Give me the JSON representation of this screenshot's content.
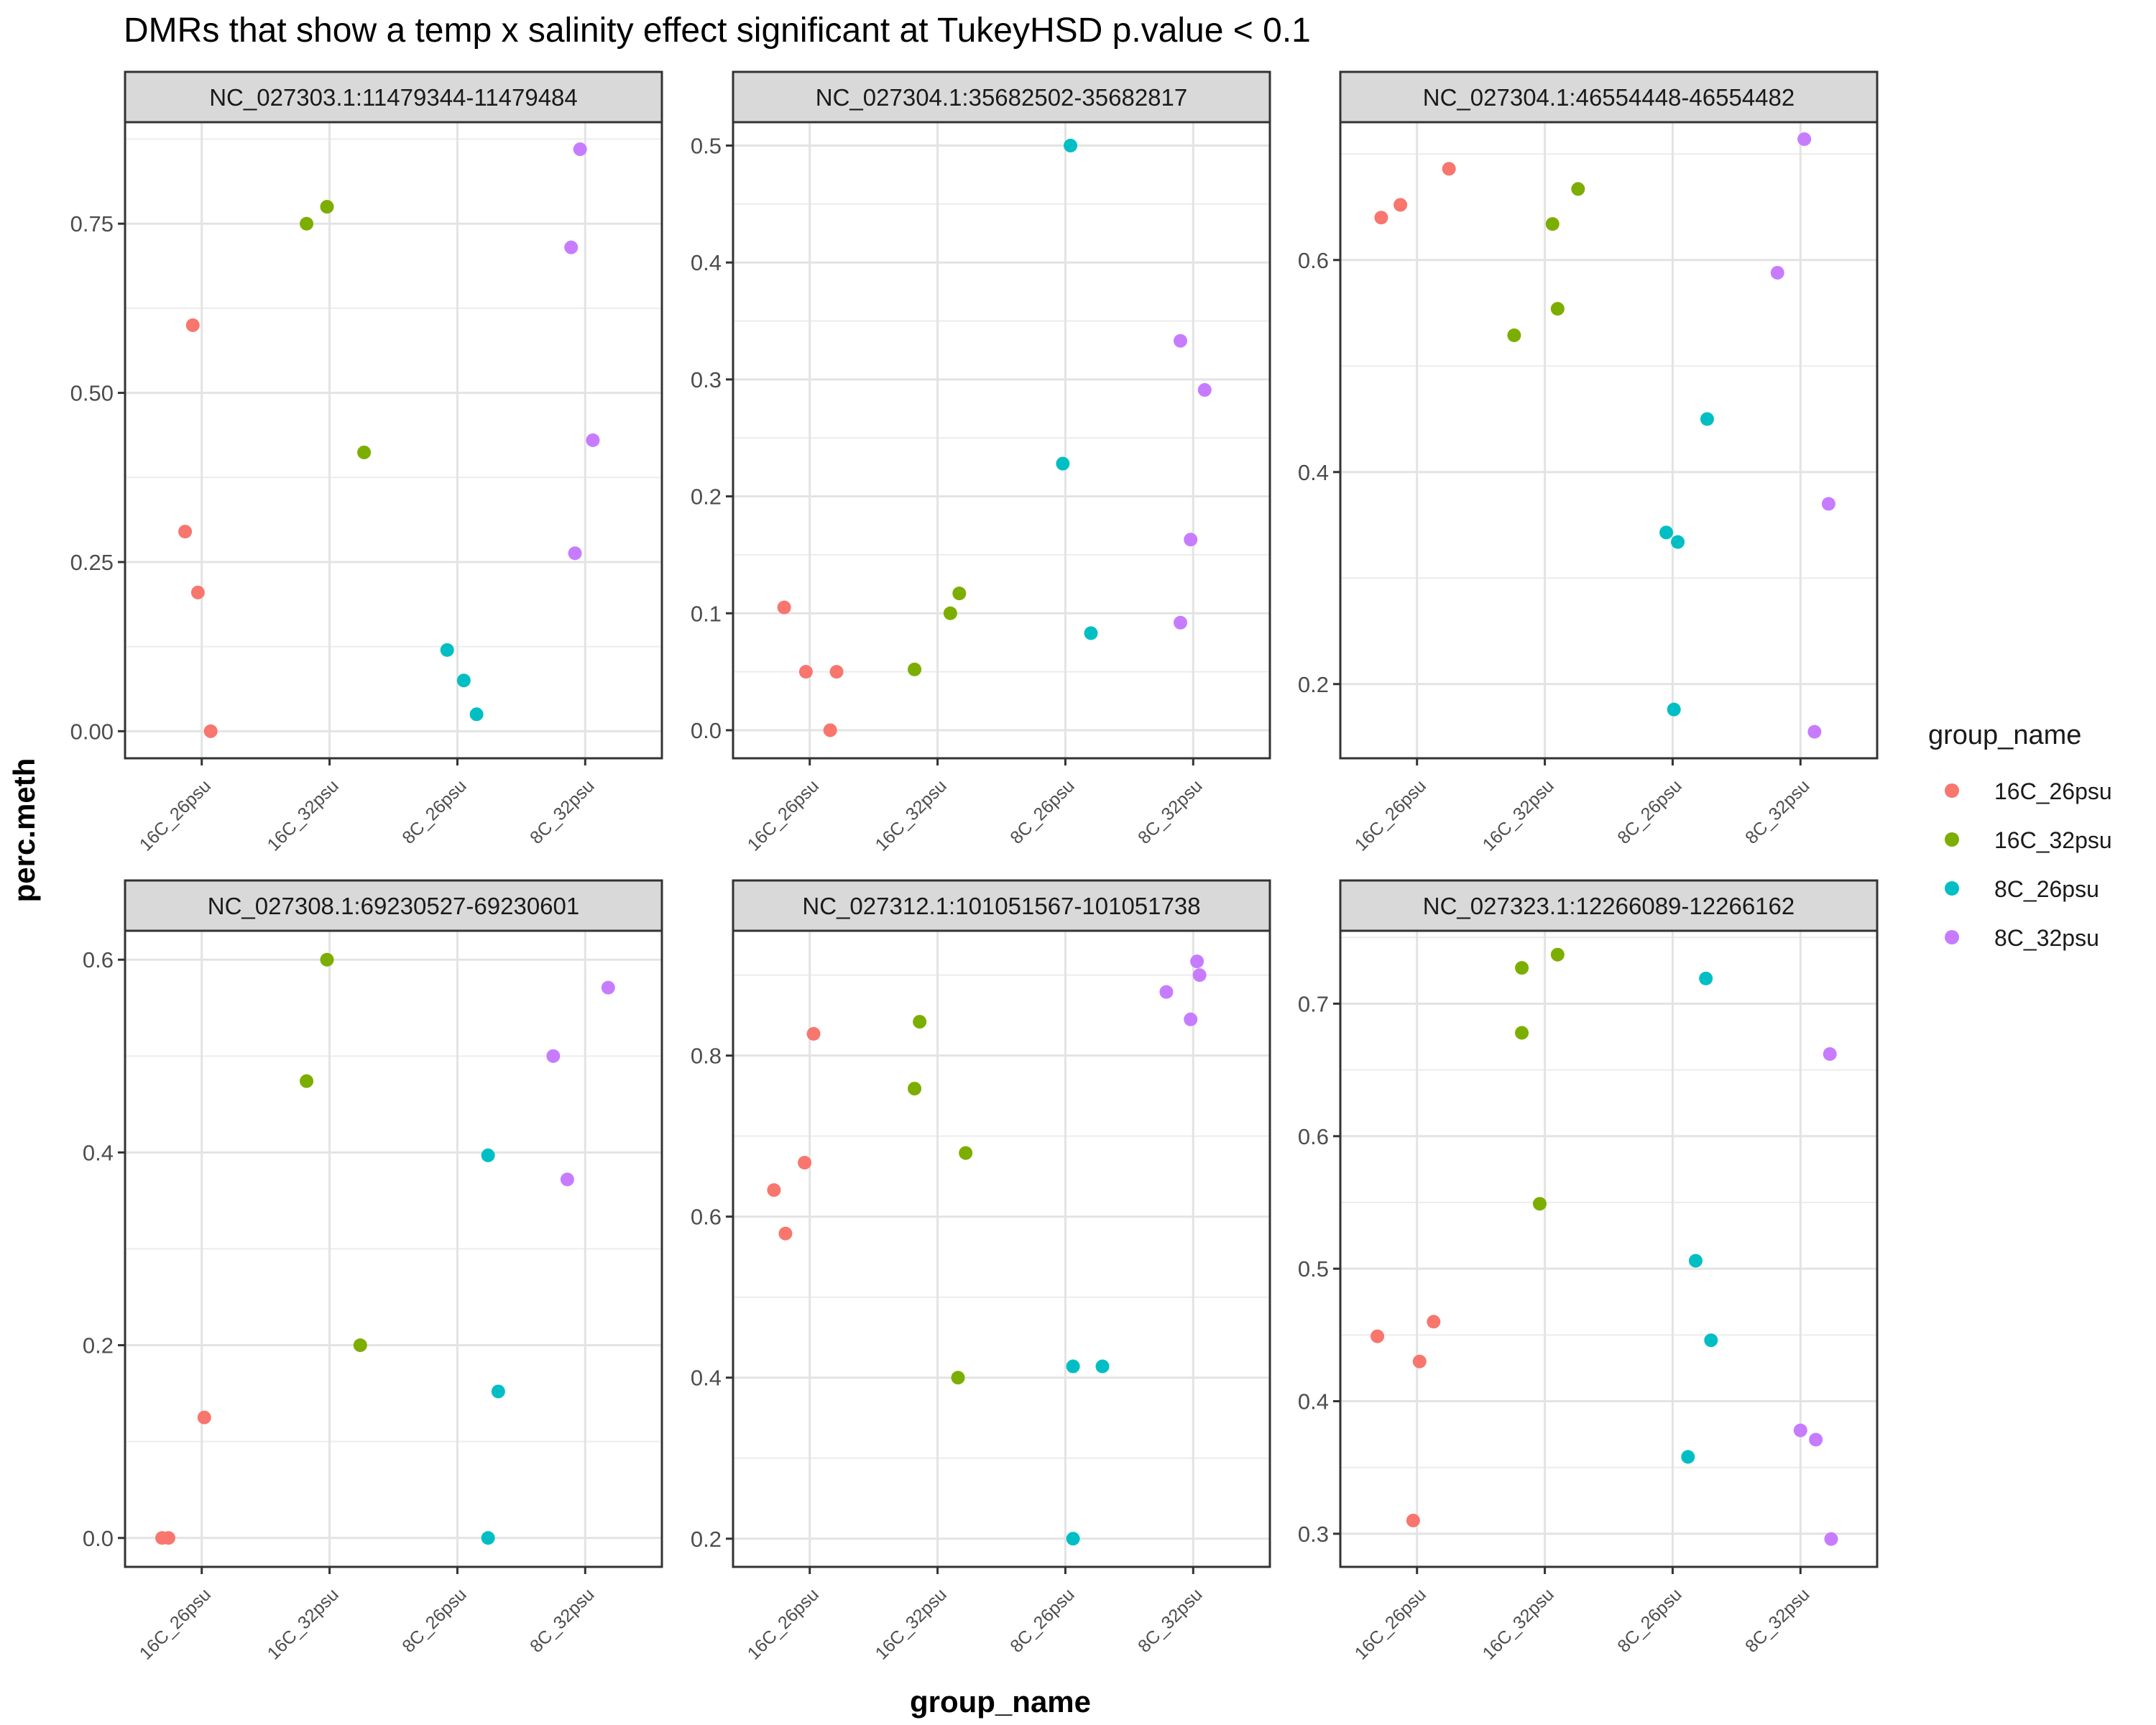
{
  "chart_data": {
    "type": "scatter",
    "title": "DMRs that show a temp x salinity effect significant at TukeyHSD p.value < 0.1",
    "xlabel": "group_name",
    "ylabel": "perc.meth",
    "categories": [
      "16C_26psu",
      "16C_32psu",
      "8C_26psu",
      "8C_32psu"
    ],
    "legend": {
      "title": "group_name",
      "position": "right",
      "items": [
        {
          "label": "16C_26psu",
          "color": "#F8766D"
        },
        {
          "label": "16C_32psu",
          "color": "#7CAE00"
        },
        {
          "label": "8C_26psu",
          "color": "#00BFC4"
        },
        {
          "label": "8C_32psu",
          "color": "#C77CFF"
        }
      ]
    },
    "colors": {
      "16C_26psu": "#F8766D",
      "16C_32psu": "#7CAE00",
      "8C_26psu": "#00BFC4",
      "8C_32psu": "#C77CFF"
    },
    "facets": [
      {
        "strip": "NC_027303.1:11479344-11479484",
        "ylim": [
          -0.04,
          0.9
        ],
        "yticks": [
          0.0,
          0.25,
          0.5,
          0.75
        ],
        "ytick_labels": [
          "0.00",
          "0.25",
          "0.50",
          "0.75"
        ],
        "points": [
          {
            "group": "16C_26psu",
            "x": 0.87,
            "y": 0.295
          },
          {
            "group": "16C_26psu",
            "x": 0.97,
            "y": 0.205
          },
          {
            "group": "16C_26psu",
            "x": 0.93,
            "y": 0.6
          },
          {
            "group": "16C_26psu",
            "x": 1.07,
            "y": 0.0
          },
          {
            "group": "16C_32psu",
            "x": 1.82,
            "y": 0.75
          },
          {
            "group": "16C_32psu",
            "x": 1.98,
            "y": 0.775
          },
          {
            "group": "16C_32psu",
            "x": 2.27,
            "y": 0.412
          },
          {
            "group": "8C_26psu",
            "x": 2.92,
            "y": 0.12
          },
          {
            "group": "8C_26psu",
            "x": 3.05,
            "y": 0.075
          },
          {
            "group": "8C_26psu",
            "x": 3.15,
            "y": 0.025
          },
          {
            "group": "8C_32psu",
            "x": 3.89,
            "y": 0.715
          },
          {
            "group": "8C_32psu",
            "x": 3.96,
            "y": 0.86
          },
          {
            "group": "8C_32psu",
            "x": 3.92,
            "y": 0.263
          },
          {
            "group": "8C_32psu",
            "x": 4.06,
            "y": 0.43
          }
        ]
      },
      {
        "strip": "NC_027304.1:35682502-35682817",
        "ylim": [
          -0.024,
          0.52
        ],
        "yticks": [
          0.0,
          0.1,
          0.2,
          0.3,
          0.4,
          0.5
        ],
        "ytick_labels": [
          "0.0",
          "0.1",
          "0.2",
          "0.3",
          "0.4",
          "0.5"
        ],
        "points": [
          {
            "group": "16C_26psu",
            "x": 0.8,
            "y": 0.105
          },
          {
            "group": "16C_26psu",
            "x": 0.97,
            "y": 0.05
          },
          {
            "group": "16C_26psu",
            "x": 1.21,
            "y": 0.05
          },
          {
            "group": "16C_26psu",
            "x": 1.16,
            "y": 0.0
          },
          {
            "group": "16C_32psu",
            "x": 1.82,
            "y": 0.052
          },
          {
            "group": "16C_32psu",
            "x": 2.1,
            "y": 0.1
          },
          {
            "group": "16C_32psu",
            "x": 2.17,
            "y": 0.117
          },
          {
            "group": "8C_26psu",
            "x": 3.04,
            "y": 0.5
          },
          {
            "group": "8C_26psu",
            "x": 2.98,
            "y": 0.228
          },
          {
            "group": "8C_26psu",
            "x": 3.2,
            "y": 0.083
          },
          {
            "group": "8C_32psu",
            "x": 3.9,
            "y": 0.333
          },
          {
            "group": "8C_32psu",
            "x": 4.09,
            "y": 0.291
          },
          {
            "group": "8C_32psu",
            "x": 3.98,
            "y": 0.163
          },
          {
            "group": "8C_32psu",
            "x": 3.9,
            "y": 0.092
          }
        ]
      },
      {
        "strip": "NC_027304.1:46554448-46554482",
        "ylim": [
          0.13,
          0.73
        ],
        "yticks": [
          0.2,
          0.4,
          0.6
        ],
        "ytick_labels": [
          "0.2",
          "0.4",
          "0.6"
        ],
        "points": [
          {
            "group": "16C_26psu",
            "x": 0.72,
            "y": 0.64
          },
          {
            "group": "16C_26psu",
            "x": 0.87,
            "y": 0.652
          },
          {
            "group": "16C_26psu",
            "x": 1.25,
            "y": 0.686
          },
          {
            "group": "16C_32psu",
            "x": 1.76,
            "y": 0.529
          },
          {
            "group": "16C_32psu",
            "x": 2.06,
            "y": 0.634
          },
          {
            "group": "16C_32psu",
            "x": 2.1,
            "y": 0.554
          },
          {
            "group": "16C_32psu",
            "x": 2.26,
            "y": 0.667
          },
          {
            "group": "8C_26psu",
            "x": 2.95,
            "y": 0.343
          },
          {
            "group": "8C_26psu",
            "x": 3.04,
            "y": 0.334
          },
          {
            "group": "8C_26psu",
            "x": 3.27,
            "y": 0.45
          },
          {
            "group": "8C_26psu",
            "x": 3.01,
            "y": 0.176
          },
          {
            "group": "8C_32psu",
            "x": 3.82,
            "y": 0.588
          },
          {
            "group": "8C_32psu",
            "x": 4.03,
            "y": 0.714
          },
          {
            "group": "8C_32psu",
            "x": 4.22,
            "y": 0.37
          },
          {
            "group": "8C_32psu",
            "x": 4.11,
            "y": 0.155
          }
        ]
      },
      {
        "strip": "NC_027308.1:69230527-69230601",
        "ylim": [
          -0.03,
          0.63
        ],
        "yticks": [
          0.0,
          0.2,
          0.4,
          0.6
        ],
        "ytick_labels": [
          "0.0",
          "0.2",
          "0.4",
          "0.6"
        ],
        "points": [
          {
            "group": "16C_26psu",
            "x": 0.69,
            "y": 0.0
          },
          {
            "group": "16C_26psu",
            "x": 0.74,
            "y": 0.0
          },
          {
            "group": "16C_26psu",
            "x": 1.02,
            "y": 0.125
          },
          {
            "group": "16C_32psu",
            "x": 1.82,
            "y": 0.474
          },
          {
            "group": "16C_32psu",
            "x": 1.98,
            "y": 0.6
          },
          {
            "group": "16C_32psu",
            "x": 2.24,
            "y": 0.2
          },
          {
            "group": "8C_26psu",
            "x": 3.24,
            "y": 0.397
          },
          {
            "group": "8C_26psu",
            "x": 3.32,
            "y": 0.152
          },
          {
            "group": "8C_26psu",
            "x": 3.24,
            "y": 0.0
          },
          {
            "group": "8C_32psu",
            "x": 3.75,
            "y": 0.5
          },
          {
            "group": "8C_32psu",
            "x": 3.86,
            "y": 0.372
          },
          {
            "group": "8C_32psu",
            "x": 4.18,
            "y": 0.571
          }
        ]
      },
      {
        "strip": "NC_027312.1:101051567-101051738",
        "ylim": [
          0.165,
          0.955
        ],
        "yticks": [
          0.2,
          0.4,
          0.6,
          0.8
        ],
        "ytick_labels": [
          "0.2",
          "0.4",
          "0.6",
          "0.8"
        ],
        "points": [
          {
            "group": "16C_26psu",
            "x": 0.72,
            "y": 0.633
          },
          {
            "group": "16C_26psu",
            "x": 0.81,
            "y": 0.579
          },
          {
            "group": "16C_26psu",
            "x": 0.96,
            "y": 0.667
          },
          {
            "group": "16C_26psu",
            "x": 1.03,
            "y": 0.827
          },
          {
            "group": "16C_32psu",
            "x": 1.82,
            "y": 0.759
          },
          {
            "group": "16C_32psu",
            "x": 1.86,
            "y": 0.842
          },
          {
            "group": "16C_32psu",
            "x": 2.16,
            "y": 0.4
          },
          {
            "group": "16C_32psu",
            "x": 2.22,
            "y": 0.679
          },
          {
            "group": "8C_26psu",
            "x": 3.06,
            "y": 0.414
          },
          {
            "group": "8C_26psu",
            "x": 3.29,
            "y": 0.414
          },
          {
            "group": "8C_26psu",
            "x": 3.06,
            "y": 0.2
          },
          {
            "group": "8C_32psu",
            "x": 3.79,
            "y": 0.879
          },
          {
            "group": "8C_32psu",
            "x": 3.98,
            "y": 0.845
          },
          {
            "group": "8C_32psu",
            "x": 4.03,
            "y": 0.917
          },
          {
            "group": "8C_32psu",
            "x": 4.05,
            "y": 0.9
          }
        ]
      },
      {
        "strip": "NC_027323.1:12266089-12266162",
        "ylim": [
          0.275,
          0.755
        ],
        "yticks": [
          0.3,
          0.4,
          0.5,
          0.6,
          0.7
        ],
        "ytick_labels": [
          "0.3",
          "0.4",
          "0.5",
          "0.6",
          "0.7"
        ],
        "points": [
          {
            "group": "16C_26psu",
            "x": 0.97,
            "y": 0.31
          },
          {
            "group": "16C_26psu",
            "x": 0.69,
            "y": 0.449
          },
          {
            "group": "16C_26psu",
            "x": 1.02,
            "y": 0.43
          },
          {
            "group": "16C_26psu",
            "x": 1.13,
            "y": 0.46
          },
          {
            "group": "16C_32psu",
            "x": 1.82,
            "y": 0.678
          },
          {
            "group": "16C_32psu",
            "x": 1.82,
            "y": 0.727
          },
          {
            "group": "16C_32psu",
            "x": 2.1,
            "y": 0.737
          },
          {
            "group": "16C_32psu",
            "x": 1.96,
            "y": 0.549
          },
          {
            "group": "8C_26psu",
            "x": 3.26,
            "y": 0.719
          },
          {
            "group": "8C_26psu",
            "x": 3.18,
            "y": 0.506
          },
          {
            "group": "8C_26psu",
            "x": 3.3,
            "y": 0.446
          },
          {
            "group": "8C_26psu",
            "x": 3.12,
            "y": 0.358
          },
          {
            "group": "8C_32psu",
            "x": 4.23,
            "y": 0.662
          },
          {
            "group": "8C_32psu",
            "x": 4.0,
            "y": 0.378
          },
          {
            "group": "8C_32psu",
            "x": 4.12,
            "y": 0.371
          },
          {
            "group": "8C_32psu",
            "x": 4.24,
            "y": 0.296
          }
        ]
      }
    ]
  }
}
